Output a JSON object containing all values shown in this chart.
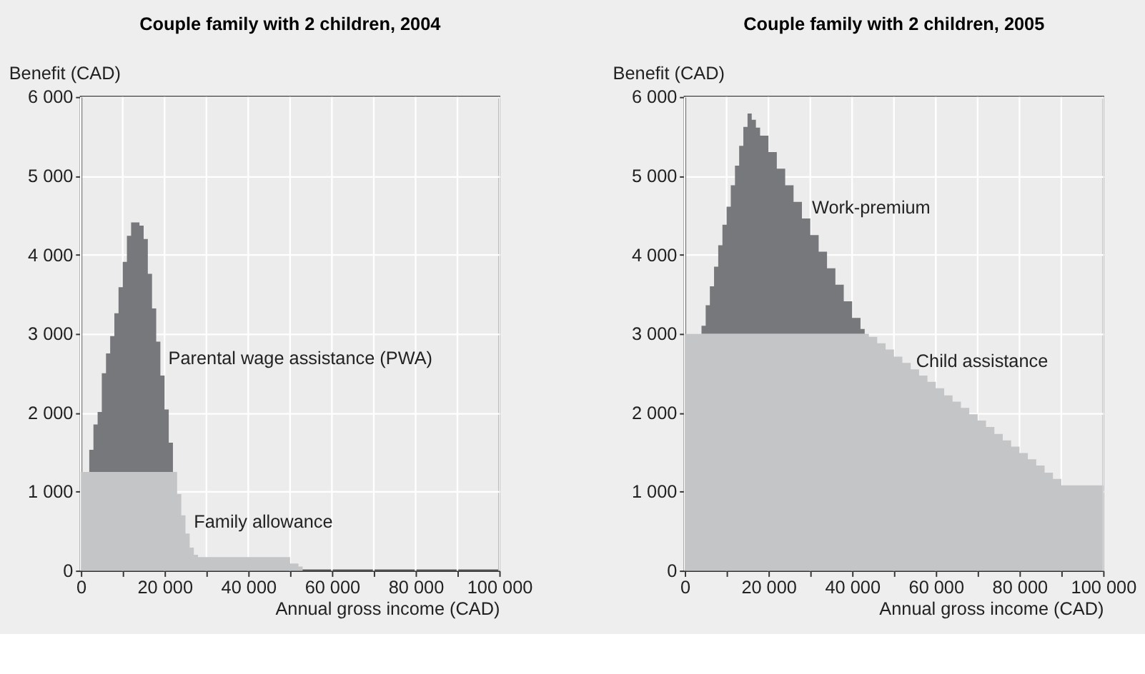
{
  "chart_data": [
    {
      "type": "area",
      "stacked": true,
      "title": "Couple family with 2 children, 2004",
      "xlabel": "Annual gross income (CAD)",
      "ylabel": "Benefit (CAD)",
      "x": [
        0,
        2000,
        3000,
        4000,
        5000,
        6000,
        7000,
        8000,
        9000,
        10000,
        11000,
        12000,
        13000,
        14000,
        15000,
        16000,
        17000,
        18000,
        19000,
        20000,
        21000,
        22000,
        23000,
        24000,
        25000,
        26000,
        27000,
        28000,
        50000,
        52000,
        53000,
        100000
      ],
      "series": [
        {
          "color": "#c4c5c7",
          "values": [
            1250,
            1250,
            1250,
            1250,
            1250,
            1250,
            1250,
            1250,
            1250,
            1250,
            1250,
            1250,
            1250,
            1250,
            1250,
            1250,
            1250,
            1250,
            1250,
            1250,
            1250,
            1250,
            970,
            700,
            470,
            290,
            200,
            170,
            90,
            50,
            0,
            0
          ]
        },
        {
          "color": "#77787b",
          "values": [
            0,
            280,
            600,
            760,
            1250,
            1500,
            1720,
            2010,
            2340,
            2660,
            2990,
            3160,
            3160,
            3120,
            2950,
            2510,
            2070,
            1650,
            1220,
            790,
            370,
            0,
            0,
            0,
            0,
            0,
            0,
            0,
            0,
            0,
            0,
            0
          ]
        }
      ],
      "xlim": [
        0,
        100000
      ],
      "xticks": [
        0,
        {
          "value": 10000,
          "label": null
        },
        {
          "value": 20000,
          "label": "20 000"
        },
        {
          "value": 30000,
          "label": null
        },
        {
          "value": 40000,
          "label": "40 000"
        },
        {
          "value": 50000,
          "label": null
        },
        {
          "value": 60000,
          "label": "60 000"
        },
        {
          "value": 70000,
          "label": null
        },
        {
          "value": 80000,
          "label": "80 000"
        },
        {
          "value": 90000,
          "label": null
        },
        {
          "value": 100000,
          "label": "100 000"
        }
      ],
      "ylim": [
        0,
        6000
      ],
      "yticks": [
        0,
        {
          "value": 1000,
          "label": "1 000"
        },
        {
          "value": 2000,
          "label": "2 000"
        },
        {
          "value": 3000,
          "label": "3 000"
        },
        {
          "value": 4000,
          "label": "4 000"
        },
        {
          "value": 5000,
          "label": "5 000"
        },
        {
          "value": 6000,
          "label": "6 000"
        }
      ],
      "grid": true,
      "annotations": [
        "Parental wage assistance (PWA)",
        "Family allowance"
      ]
    },
    {
      "type": "area",
      "stacked": true,
      "title": "Couple family with 2 children, 2005",
      "xlabel": "Annual gross income (CAD)",
      "ylabel": "Benefit (CAD)",
      "x": [
        0,
        4000,
        5000,
        6000,
        7000,
        8000,
        9000,
        10000,
        11000,
        12000,
        13000,
        14000,
        15000,
        16000,
        17000,
        18000,
        20000,
        22000,
        24000,
        26000,
        28000,
        30000,
        32000,
        34000,
        36000,
        38000,
        40000,
        42000,
        43000,
        44000,
        46000,
        48000,
        50000,
        52000,
        54000,
        56000,
        58000,
        60000,
        62000,
        64000,
        66000,
        68000,
        70000,
        72000,
        74000,
        76000,
        78000,
        80000,
        82000,
        84000,
        86000,
        88000,
        90000,
        100000
      ],
      "series": [
        {
          "color": "#c4c5c7",
          "values": [
            3000,
            3000,
            3000,
            3000,
            3000,
            3000,
            3000,
            3000,
            3000,
            3000,
            3000,
            3000,
            3000,
            3000,
            3000,
            3000,
            3000,
            3000,
            3000,
            3000,
            3000,
            3000,
            3000,
            3000,
            3000,
            3000,
            3000,
            3000,
            3000,
            2960,
            2880,
            2800,
            2710,
            2630,
            2550,
            2470,
            2390,
            2310,
            2220,
            2140,
            2060,
            1980,
            1900,
            1820,
            1730,
            1650,
            1570,
            1490,
            1410,
            1330,
            1240,
            1160,
            1080,
            1080
          ]
        },
        {
          "color": "#77787b",
          "values": [
            0,
            100,
            360,
            600,
            850,
            1120,
            1380,
            1610,
            1880,
            2130,
            2380,
            2620,
            2790,
            2710,
            2610,
            2510,
            2300,
            2090,
            1880,
            1670,
            1460,
            1250,
            1040,
            830,
            620,
            410,
            200,
            60,
            0,
            0,
            0,
            0,
            0,
            0,
            0,
            0,
            0,
            0,
            0,
            0,
            0,
            0,
            0,
            0,
            0,
            0,
            0,
            0,
            0,
            0,
            0,
            0,
            0,
            0
          ]
        }
      ],
      "xlim": [
        0,
        100000
      ],
      "xticks": [
        0,
        {
          "value": 10000,
          "label": null
        },
        {
          "value": 20000,
          "label": "20 000"
        },
        {
          "value": 30000,
          "label": null
        },
        {
          "value": 40000,
          "label": "40 000"
        },
        {
          "value": 50000,
          "label": null
        },
        {
          "value": 60000,
          "label": "60 000"
        },
        {
          "value": 70000,
          "label": null
        },
        {
          "value": 80000,
          "label": "80 000"
        },
        {
          "value": 90000,
          "label": null
        },
        {
          "value": 100000,
          "label": "100 000"
        }
      ],
      "ylim": [
        0,
        6000
      ],
      "yticks": [
        0,
        {
          "value": 1000,
          "label": "1 000"
        },
        {
          "value": 2000,
          "label": "2 000"
        },
        {
          "value": 3000,
          "label": "3 000"
        },
        {
          "value": 4000,
          "label": "4 000"
        },
        {
          "value": 5000,
          "label": "5 000"
        },
        {
          "value": 6000,
          "label": "6 000"
        }
      ],
      "grid": true,
      "annotations": [
        "Work-premium",
        "Child assistance"
      ]
    }
  ]
}
